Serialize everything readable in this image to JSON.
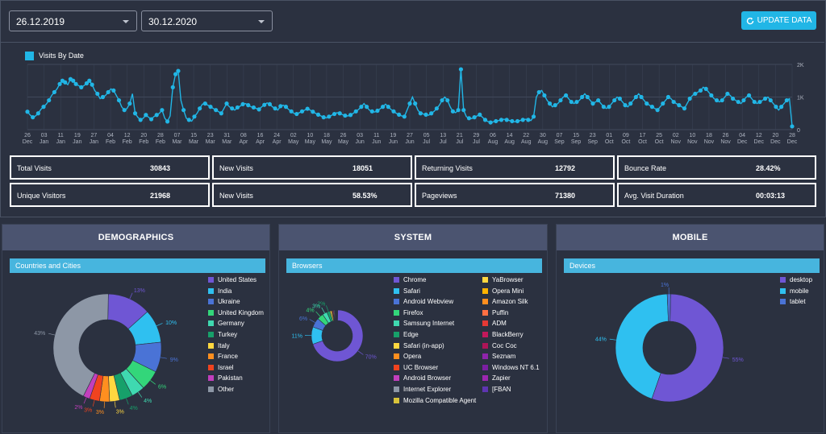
{
  "filters": {
    "start_date": "26.12.2019",
    "end_date": "30.12.2020",
    "update_label": "UPDATE DATA"
  },
  "chart_data": [
    {
      "type": "line",
      "legend": "Visits By Date",
      "color": "#21b6e6",
      "y_ticks": [
        "0",
        "1K",
        "2K"
      ],
      "ylim": [
        0,
        2000
      ],
      "x_ticks": [
        "26 Dec",
        "03 Jan",
        "11 Jan",
        "19 Jan",
        "27 Jan",
        "04 Feb",
        "12 Feb",
        "20 Feb",
        "28 Feb",
        "07 Mar",
        "15 Mar",
        "23 Mar",
        "31 Mar",
        "08 Apr",
        "16 Apr",
        "24 Apr",
        "02 May",
        "10 May",
        "18 May",
        "26 May",
        "03 Jun",
        "11 Jun",
        "19 Jun",
        "27 Jun",
        "05 Jul",
        "13 Jul",
        "21 Jul",
        "29 Jul",
        "06 Aug",
        "14 Aug",
        "22 Aug",
        "30 Aug",
        "07 Sep",
        "15 Sep",
        "23 Sep",
        "01 Oct",
        "09 Oct",
        "17 Oct",
        "25 Oct",
        "02 Nov",
        "10 Nov",
        "18 Nov",
        "26 Nov",
        "04 Dec",
        "12 Dec",
        "20 Dec",
        "28 Dec"
      ],
      "values": [
        550,
        450,
        380,
        420,
        500,
        620,
        700,
        780,
        900,
        1050,
        1150,
        1250,
        1400,
        1500,
        1450,
        1380,
        1550,
        1500,
        1400,
        1350,
        1300,
        1350,
        1420,
        1500,
        1380,
        1200,
        1100,
        950,
        1000,
        1050,
        1150,
        1250,
        1200,
        1050,
        900,
        700,
        600,
        650,
        800,
        1100,
        500,
        380,
        300,
        350,
        450,
        380,
        320,
        400,
        450,
        500,
        600,
        350,
        250,
        420,
        1300,
        1700,
        1800,
        900,
        600,
        350,
        300,
        260,
        400,
        500,
        650,
        780,
        800,
        750,
        700,
        650,
        600,
        550,
        500,
        650,
        800,
        700,
        650,
        600,
        680,
        720,
        780,
        800,
        750,
        700,
        680,
        650,
        620,
        700,
        760,
        820,
        780,
        700,
        650,
        600,
        720,
        750,
        700,
        620,
        560,
        500,
        480,
        520,
        560,
        600,
        640,
        600,
        550,
        500,
        460,
        420,
        380,
        360,
        400,
        440,
        480,
        520,
        500,
        460,
        430,
        420,
        450,
        500,
        560,
        620,
        700,
        800,
        700,
        600,
        560,
        540,
        580,
        640,
        700,
        780,
        700,
        620,
        560,
        500,
        460,
        420,
        400,
        600,
        800,
        1000,
        800,
        600,
        500,
        480,
        460,
        440,
        500,
        560,
        650,
        750,
        900,
        1000,
        900,
        700,
        560,
        520,
        600,
        1850,
        600,
        400,
        350,
        340,
        380,
        420,
        460,
        380,
        300,
        250,
        220,
        240,
        260,
        280,
        300,
        320,
        300,
        280,
        260,
        240,
        260,
        280,
        300,
        320,
        300,
        280,
        400,
        1000,
        1150,
        1200,
        1050,
        900,
        800,
        700,
        750,
        800,
        900,
        1000,
        1050,
        950,
        850,
        800,
        850,
        900,
        1000,
        1100,
        1000,
        900,
        800,
        850,
        900,
        800,
        700,
        650,
        700,
        800,
        900,
        1000,
        950,
        850,
        750,
        700,
        800,
        900,
        1000,
        1100,
        1000,
        900,
        800,
        750,
        700,
        650,
        600,
        700,
        800,
        900,
        1000,
        950,
        850,
        800,
        750,
        700,
        650,
        800,
        950,
        1050,
        1100,
        1150,
        1200,
        1300,
        1250,
        1150,
        1050,
        950,
        900,
        850,
        900,
        1000,
        1100,
        1050,
        950,
        900,
        850,
        800,
        900,
        1000,
        1050,
        950,
        850,
        800,
        850,
        900,
        950,
        1000,
        900,
        800,
        700,
        600,
        700,
        800,
        900,
        950,
        100
      ]
    },
    {
      "type": "pie",
      "title": "Countries and Cities",
      "slices": [
        {
          "label": "United States",
          "value": 13,
          "color": "#6f56d4"
        },
        {
          "label": "India",
          "value": 10,
          "color": "#2fc0f0"
        },
        {
          "label": "Ukraine",
          "value": 9,
          "color": "#4a73d6"
        },
        {
          "label": "United Kingdom",
          "value": 6,
          "color": "#33d67a"
        },
        {
          "label": "Germany",
          "value": 4,
          "color": "#3fd9b0"
        },
        {
          "label": "Turkey",
          "value": 4,
          "color": "#17a06a"
        },
        {
          "label": "Italy",
          "value": 3,
          "color": "#ffd740"
        },
        {
          "label": "France",
          "value": 3,
          "color": "#ff8f1f"
        },
        {
          "label": "Israel",
          "value": 3,
          "color": "#f0431f"
        },
        {
          "label": "Pakistan",
          "value": 2,
          "color": "#c23fbd"
        },
        {
          "label": "Other",
          "value": 43,
          "color": "#8d97a6"
        }
      ],
      "labels": [
        "13%",
        "10%",
        "9%",
        "6%",
        "4%",
        "4%",
        "3%",
        "3%",
        "3%",
        "2%",
        "43%"
      ]
    },
    {
      "type": "pie",
      "title": "Browsers",
      "slices": [
        {
          "label": "Chrome",
          "value": 70,
          "color": "#6f56d4"
        },
        {
          "label": "Safari",
          "value": 11,
          "color": "#2fc0f0"
        },
        {
          "label": "Android Webview",
          "value": 6,
          "color": "#4a73d6"
        },
        {
          "label": "Firefox",
          "value": 4,
          "color": "#33d67a"
        },
        {
          "label": "Samsung Internet",
          "value": 3,
          "color": "#3fd9b0"
        },
        {
          "label": "Edge",
          "value": 2,
          "color": "#17a06a"
        },
        {
          "label": "Safari (in-app)",
          "value": 1,
          "color": "#ffd740"
        },
        {
          "label": "Opera",
          "value": 0.5,
          "color": "#ff8f1f"
        },
        {
          "label": "UC Browser",
          "value": 0.5,
          "color": "#f0431f"
        },
        {
          "label": "Android Browser",
          "value": 0.5,
          "color": "#c23fbd"
        },
        {
          "label": "Internet Explorer",
          "value": 0.5,
          "color": "#8d97a6"
        },
        {
          "label": "Mozilla Compatible Agent",
          "value": 0.3,
          "color": "#d8c33a"
        },
        {
          "label": "YaBrowser",
          "value": 0.3,
          "color": "#ffd740"
        },
        {
          "label": "Opera Mini",
          "value": 0.2,
          "color": "#ffb300"
        },
        {
          "label": "Amazon Silk",
          "value": 0.2,
          "color": "#ff8f1f"
        },
        {
          "label": "Puffin",
          "value": 0.2,
          "color": "#ff7043"
        },
        {
          "label": "ADM",
          "value": 0.1,
          "color": "#e53935"
        },
        {
          "label": "BlackBerry",
          "value": 0.1,
          "color": "#c2185b"
        },
        {
          "label": "Coc Coc",
          "value": 0.1,
          "color": "#ad1457"
        },
        {
          "label": "Seznam",
          "value": 0.1,
          "color": "#8e24aa"
        },
        {
          "label": "Windows NT 6.1",
          "value": 0.1,
          "color": "#7b1fa2"
        },
        {
          "label": "Zapier",
          "value": 0.1,
          "color": "#9c27b0"
        },
        {
          "label": "[FBAN",
          "value": 0.1,
          "color": "#5e35b1"
        }
      ],
      "labels": [
        "70%",
        "11%",
        "6%",
        "4%",
        "3%",
        "2%"
      ]
    },
    {
      "type": "pie",
      "title": "Devices",
      "slices": [
        {
          "label": "desktop",
          "value": 55,
          "color": "#6f56d4"
        },
        {
          "label": "mobile",
          "value": 44,
          "color": "#2fc0f0"
        },
        {
          "label": "tablet",
          "value": 1,
          "color": "#4a73d6"
        }
      ],
      "labels": [
        "55%",
        "44%",
        "1%"
      ]
    }
  ],
  "stats": {
    "total_visits": {
      "label": "Total Visits",
      "value": "30843"
    },
    "new_visits": {
      "label": "New Visits",
      "value": "18051"
    },
    "returning_visits": {
      "label": "Returning Visits",
      "value": "12792"
    },
    "bounce_rate": {
      "label": "Bounce Rate",
      "value": "28.42%"
    },
    "unique_visitors": {
      "label": "Unique Visitors",
      "value": "21968"
    },
    "new_visits_pct": {
      "label": "New Visits",
      "value": "58.53%"
    },
    "pageviews": {
      "label": "Pageviews",
      "value": "71380"
    },
    "avg_visit_duration": {
      "label": "Avg. Visit Duration",
      "value": "00:03:13"
    }
  },
  "panels": {
    "demographics": "DEMOGRAPHICS",
    "system": "SYSTEM",
    "mobile": "MOBILE"
  }
}
